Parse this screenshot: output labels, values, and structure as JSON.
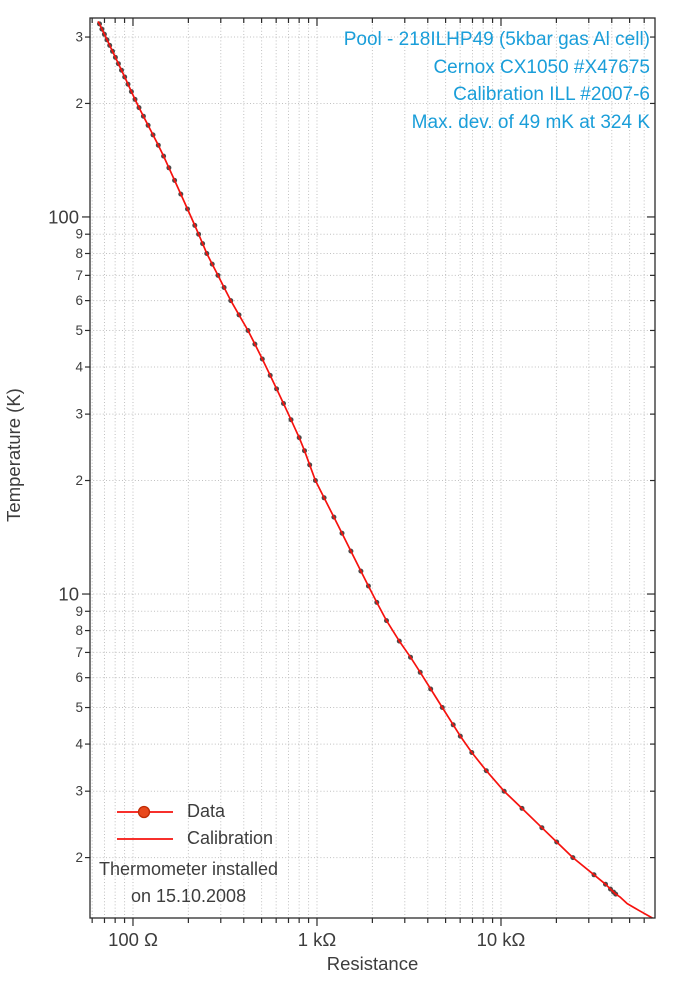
{
  "annotation": {
    "color": "#1a9ed9",
    "lines": [
      "Pool - 218ILHP49 (5kbar gas Al cell)",
      "Cernox CX1050 #X47675",
      "Calibration ILL #2007-6",
      "Max. dev. of 49 mK at 324 K"
    ]
  },
  "legend": {
    "data_label": "Data",
    "calibration_label": "Calibration",
    "note_line1": "Thermometer installed",
    "note_line2": "on 15.10.2008",
    "marker_fill": "#e8481c",
    "marker_stroke": "#bf2b05",
    "line_color": "#f6120e",
    "text_color": "#3d3d3d"
  },
  "axes": {
    "x_title": "Resistance",
    "y_title": "Temperature (K)"
  },
  "chart_data": {
    "type": "scatter",
    "title": "",
    "xlabel": "Resistance",
    "ylabel": "Temperature (K)",
    "x_scale": "log",
    "y_scale": "log",
    "xlim": [
      58.4,
      68700
    ],
    "ylim": [
      1.383,
      337
    ],
    "grid": "dotted gray lines at every log mantissa position on both axes",
    "legend_position": "lower-left inside plot",
    "x_ticks": [
      {
        "v": 100,
        "label": "100 Ω"
      },
      {
        "v": 1000,
        "label": "1 kΩ"
      },
      {
        "v": 10000,
        "label": "10 kΩ"
      }
    ],
    "y_ticks": [
      {
        "v": 300,
        "label": "3"
      },
      {
        "v": 200,
        "label": "2"
      },
      {
        "v": 100,
        "label": "100",
        "major": true
      },
      {
        "v": 90,
        "label": "9"
      },
      {
        "v": 80,
        "label": "8"
      },
      {
        "v": 70,
        "label": "7"
      },
      {
        "v": 60,
        "label": "6"
      },
      {
        "v": 50,
        "label": "5"
      },
      {
        "v": 40,
        "label": "4"
      },
      {
        "v": 30,
        "label": "3"
      },
      {
        "v": 20,
        "label": "2"
      },
      {
        "v": 10,
        "label": "10",
        "major": true
      },
      {
        "v": 9,
        "label": "9"
      },
      {
        "v": 8,
        "label": "8"
      },
      {
        "v": 7,
        "label": "7"
      },
      {
        "v": 6,
        "label": "6"
      },
      {
        "v": 5,
        "label": "5"
      },
      {
        "v": 4,
        "label": "4"
      },
      {
        "v": 3,
        "label": "3"
      },
      {
        "v": 2,
        "label": "2"
      }
    ],
    "series": [
      {
        "name": "Data",
        "kind": "scatter",
        "marker_color": "#4b4b4b",
        "marker_radius": 2.5,
        "points_r_ohm_t_k": [
          [
            65.8,
            325
          ],
          [
            67.8,
            315
          ],
          [
            69.9,
            305
          ],
          [
            72.2,
            295
          ],
          [
            74.7,
            285
          ],
          [
            77.4,
            275
          ],
          [
            80.3,
            265
          ],
          [
            83.3,
            255
          ],
          [
            86.6,
            245
          ],
          [
            90.1,
            235
          ],
          [
            93.9,
            225
          ],
          [
            98.0,
            215
          ],
          [
            102.6,
            205
          ],
          [
            107.8,
            195
          ],
          [
            113.9,
            185
          ],
          [
            120.8,
            175
          ],
          [
            128.5,
            165
          ],
          [
            137.2,
            155
          ],
          [
            146.6,
            145
          ],
          [
            156.8,
            135
          ],
          [
            168.4,
            125
          ],
          [
            182.0,
            115
          ],
          [
            197.9,
            105
          ],
          [
            216.7,
            95
          ],
          [
            227.2,
            90
          ],
          [
            238.9,
            85
          ],
          [
            252,
            80
          ],
          [
            269.5,
            75
          ],
          [
            289.6,
            70
          ],
          [
            312.9,
            65
          ],
          [
            340,
            60
          ],
          [
            377,
            55
          ],
          [
            422,
            50
          ],
          [
            459.6,
            46
          ],
          [
            504.2,
            42
          ],
          [
            557,
            38
          ],
          [
            603,
            35
          ],
          [
            658,
            32
          ],
          [
            722,
            29
          ],
          [
            800,
            26
          ],
          [
            855.6,
            24
          ],
          [
            913.2,
            22
          ],
          [
            980,
            20
          ],
          [
            1093,
            18
          ],
          [
            1235,
            16
          ],
          [
            1367,
            14.5
          ],
          [
            1529,
            13
          ],
          [
            1733,
            11.5
          ],
          [
            1902,
            10.5
          ],
          [
            2115,
            9.5
          ],
          [
            2387,
            8.5
          ],
          [
            2802,
            7.5
          ],
          [
            3222,
            6.8
          ],
          [
            3640,
            6.2
          ],
          [
            4151,
            5.6
          ],
          [
            4800,
            5.0
          ],
          [
            5500,
            4.5
          ],
          [
            6012,
            4.2
          ],
          [
            6939,
            3.8
          ],
          [
            8319,
            3.4
          ],
          [
            10400,
            3.0
          ],
          [
            13000,
            2.7
          ],
          [
            16690,
            2.4
          ],
          [
            20080,
            2.2
          ],
          [
            24600,
            2.0
          ],
          [
            32040,
            1.8
          ],
          [
            37000,
            1.7
          ],
          [
            39360,
            1.65
          ],
          [
            40900,
            1.62
          ],
          [
            42000,
            1.6
          ]
        ]
      },
      {
        "name": "Calibration",
        "kind": "line",
        "color": "#f6120e",
        "width": 1.7,
        "note": "smooth calibration curve passing through all Data points",
        "head_points_r_ohm_t_k": [
          [
            64.5,
            330
          ]
        ],
        "tail_points_r_ohm_t_k": [
          [
            44500,
            1.57
          ],
          [
            48500,
            1.51
          ],
          [
            56000,
            1.45
          ],
          [
            66500,
            1.383
          ]
        ]
      }
    ]
  }
}
